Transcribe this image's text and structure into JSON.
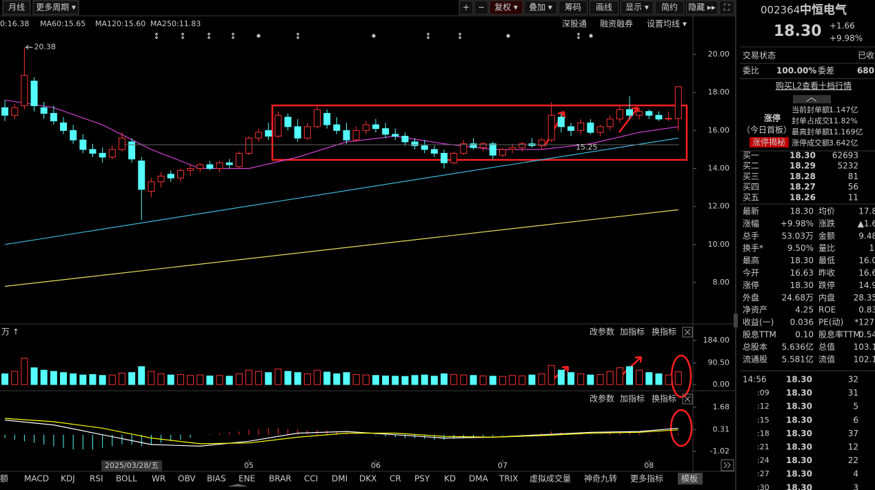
{
  "toolbar": {
    "left": [
      "月线",
      "更多周期 ▾"
    ],
    "right": [
      "+",
      "−",
      "复权 ▾",
      "叠加 ▾",
      "筹码",
      "画线",
      "显示 ▾",
      "简约",
      "隐藏 ▸▸",
      "⛶"
    ]
  },
  "ma_legend": [
    {
      "text": "0:16.38",
      "color": "#ffffff"
    },
    {
      "text": "MA60:15.65",
      "color": "#dddddd"
    },
    {
      "text": "MA120:15.60",
      "color": "#40e0ff"
    },
    {
      "text": "MA250:11.83",
      "color": "#ffff66"
    }
  ],
  "chart_links": [
    "深股通",
    "融资融券",
    "设置均线 ▾"
  ],
  "panel_controls": [
    "改参数",
    "加指标",
    "换指标"
  ],
  "chart_data": [
    {
      "type": "candlestick",
      "open": [
        17.2,
        16.8,
        17.3,
        18.6,
        17.2,
        16.9,
        16.4,
        16.0,
        15.5,
        15.0,
        14.8,
        14.6,
        15.0,
        15.4,
        14.4,
        12.8,
        13.3,
        13.7,
        13.5,
        13.9,
        14.0,
        14.2,
        14.0,
        14.3,
        14.1,
        14.8,
        15.6,
        16.0,
        15.7,
        16.7,
        16.2,
        15.6,
        16.2,
        16.9,
        16.3,
        16.0,
        15.5,
        16.0,
        16.3,
        16.1,
        15.8,
        15.7,
        15.4,
        15.2,
        15.0,
        14.8,
        14.3,
        14.8,
        15.3,
        15.1,
        15.3,
        14.7,
        15.0,
        15.1,
        15.3,
        15.2,
        15.5,
        16.7,
        16.2,
        16.0,
        16.4,
        15.9,
        16.2,
        16.6,
        17.1,
        16.8,
        17.0,
        16.8,
        16.6,
        16.63
      ],
      "high": [
        17.6,
        17.4,
        20.38,
        18.8,
        17.5,
        17.3,
        16.7,
        16.3,
        15.8,
        15.3,
        15.1,
        15.2,
        15.9,
        15.6,
        14.6,
        13.5,
        13.8,
        13.9,
        14.0,
        14.2,
        14.3,
        14.4,
        14.4,
        14.5,
        14.9,
        15.7,
        16.1,
        16.4,
        17.0,
        16.9,
        16.6,
        16.4,
        17.3,
        17.1,
        16.7,
        16.4,
        16.2,
        16.5,
        16.6,
        16.4,
        16.1,
        15.9,
        15.6,
        15.5,
        15.2,
        15.0,
        14.9,
        15.5,
        15.6,
        15.4,
        15.4,
        15.1,
        15.3,
        15.4,
        15.6,
        15.6,
        17.5,
        16.9,
        16.4,
        16.6,
        16.6,
        16.3,
        16.8,
        17.3,
        17.8,
        17.2,
        17.1,
        17.0,
        17.0,
        18.3
      ],
      "low": [
        16.5,
        16.6,
        17.1,
        17.0,
        16.6,
        16.3,
        15.8,
        15.3,
        14.8,
        14.6,
        14.3,
        14.5,
        14.9,
        14.3,
        11.3,
        12.5,
        13.0,
        13.3,
        13.3,
        13.6,
        13.8,
        13.9,
        13.8,
        14.0,
        14.0,
        14.7,
        15.4,
        15.5,
        15.6,
        16.0,
        15.4,
        15.5,
        16.1,
        16.1,
        15.8,
        15.3,
        15.4,
        15.8,
        15.9,
        15.6,
        15.5,
        15.2,
        15.0,
        14.8,
        14.6,
        14.0,
        14.2,
        14.7,
        15.0,
        14.9,
        14.5,
        14.6,
        14.8,
        14.9,
        15.1,
        15.0,
        15.4,
        15.9,
        15.7,
        15.8,
        15.8,
        15.7,
        16.0,
        16.4,
        16.6,
        16.6,
        16.6,
        16.5,
        16.5,
        16.0
      ],
      "close": [
        16.8,
        17.2,
        18.9,
        17.3,
        16.9,
        16.5,
        16.0,
        15.5,
        15.0,
        14.8,
        14.6,
        15.0,
        15.6,
        14.5,
        12.9,
        13.3,
        13.6,
        13.5,
        13.9,
        14.0,
        14.2,
        14.0,
        14.3,
        14.2,
        14.8,
        15.6,
        15.9,
        15.7,
        16.8,
        16.2,
        15.6,
        16.2,
        17.1,
        16.3,
        16.0,
        15.5,
        16.0,
        16.3,
        16.1,
        15.8,
        15.7,
        15.4,
        15.2,
        15.0,
        14.8,
        14.3,
        14.8,
        15.3,
        15.1,
        15.3,
        14.7,
        15.0,
        15.1,
        15.3,
        15.2,
        15.5,
        16.8,
        16.2,
        16.0,
        16.4,
        15.9,
        16.2,
        16.6,
        17.1,
        16.8,
        17.0,
        16.8,
        16.6,
        16.64,
        18.3
      ],
      "up_color": "#ff3232",
      "down_color": "#54fcfc",
      "xlim": [
        -0.5,
        70.5
      ],
      "ylim": [
        8,
        20
      ],
      "yticks": [
        {
          "value": 20,
          "label": "20.00"
        },
        {
          "value": 18,
          "label": "18.00"
        },
        {
          "value": 16,
          "label": "16.00"
        },
        {
          "value": 14,
          "label": "14.00"
        },
        {
          "value": 12,
          "label": "12.00"
        },
        {
          "value": 10,
          "label": "10.00"
        },
        {
          "value": 8,
          "label": "8.00"
        }
      ],
      "xticks": [
        {
          "value": 13,
          "label": "2025/03/28/五"
        },
        {
          "value": 25,
          "label": "05"
        },
        {
          "value": 38,
          "label": "06"
        },
        {
          "value": 51,
          "label": "07"
        },
        {
          "value": 66,
          "label": "08"
        }
      ],
      "lines": [
        {
          "color": "#40b8e0",
          "x": [
            0,
            69
          ],
          "values": [
            10.0,
            15.6
          ]
        },
        {
          "color": "#e8e060",
          "x": [
            0,
            69
          ],
          "values": [
            7.8,
            11.83
          ]
        },
        {
          "color": "#d040d0",
          "x": [
            0,
            5,
            10,
            15,
            20,
            25,
            30,
            35,
            40,
            45,
            50,
            55,
            60,
            65,
            69
          ],
          "values": [
            17.6,
            17.2,
            16.3,
            15.0,
            14.0,
            14.0,
            14.6,
            15.4,
            15.7,
            15.3,
            15.0,
            15.0,
            15.3,
            15.9,
            16.2
          ]
        }
      ],
      "annotations": [
        {
          "value": 20.38,
          "label": "20.38"
        },
        {
          "value": 15.25,
          "label": "15.25"
        }
      ]
    },
    {
      "type": "bar",
      "unit": "万 ↑",
      "values": [
        45,
        55,
        110,
        70,
        60,
        55,
        50,
        45,
        40,
        42,
        38,
        40,
        48,
        50,
        75,
        55,
        45,
        40,
        42,
        38,
        40,
        36,
        38,
        35,
        45,
        60,
        55,
        50,
        65,
        55,
        50,
        45,
        60,
        52,
        45,
        50,
        42,
        40,
        38,
        36,
        35,
        34,
        38,
        40,
        35,
        45,
        42,
        40,
        38,
        36,
        35,
        34,
        38,
        36,
        40,
        45,
        80,
        60,
        50,
        45,
        40,
        42,
        55,
        70,
        75,
        60,
        50,
        45,
        40,
        53
      ],
      "ylim": [
        0,
        184
      ],
      "yticks": [
        {
          "value": 184,
          "label": "184.00"
        },
        {
          "value": 90.5,
          "label": "90.50"
        },
        {
          "value": 0,
          "label": "0.00"
        }
      ]
    },
    {
      "type": "macd",
      "bars": [
        -0.2,
        -0.3,
        -0.4,
        -0.5,
        -0.6,
        -0.7,
        -0.8,
        -0.9,
        -0.9,
        -0.9,
        -0.8,
        -0.7,
        -0.6,
        -0.6,
        -0.7,
        -0.6,
        -0.5,
        -0.4,
        -0.3,
        -0.2,
        0.0,
        0.05,
        0.1,
        0.15,
        0.2,
        0.3,
        0.35,
        0.4,
        0.4,
        0.35,
        0.3,
        0.25,
        0.3,
        0.25,
        0.2,
        0.1,
        0.05,
        0.0,
        -0.05,
        -0.1,
        -0.15,
        -0.2,
        -0.2,
        -0.25,
        -0.3,
        -0.3,
        -0.25,
        -0.2,
        -0.15,
        -0.1,
        -0.1,
        -0.05,
        0.0,
        0.05,
        0.05,
        0.1,
        0.2,
        0.15,
        0.1,
        0.1,
        0.05,
        0.05,
        0.1,
        0.15,
        0.15,
        0.1,
        0.05,
        0.05,
        0.0,
        0.1
      ],
      "series": [
        {
          "color": "#ffffff",
          "x": [
            0,
            5,
            10,
            15,
            20,
            25,
            30,
            35,
            40,
            45,
            50,
            55,
            60,
            65,
            69
          ],
          "values": [
            0.9,
            0.6,
            0.0,
            -0.6,
            -0.7,
            -0.4,
            0.1,
            0.2,
            0.0,
            -0.2,
            -0.15,
            0.0,
            0.15,
            0.2,
            0.4
          ]
        },
        {
          "color": "#ffff00",
          "x": [
            0,
            5,
            10,
            15,
            20,
            25,
            30,
            35,
            40,
            45,
            50,
            55,
            60,
            65,
            69
          ],
          "values": [
            1.0,
            0.8,
            0.4,
            -0.2,
            -0.55,
            -0.5,
            -0.15,
            0.1,
            0.1,
            -0.1,
            -0.15,
            -0.05,
            0.1,
            0.15,
            0.3
          ]
        }
      ],
      "ylim": [
        -1.02,
        1.68
      ],
      "yticks": [
        {
          "value": 1.68,
          "label": "1.68"
        },
        {
          "value": 0.31,
          "label": "0.31"
        },
        {
          "value": -1.02,
          "label": "-1.02"
        }
      ]
    }
  ],
  "tabs": [
    "金额",
    "MACD",
    "KDJ",
    "RSI",
    "BOLL",
    "WR",
    "OBV",
    "BIAS",
    "ENE",
    "BRAR",
    "CCI",
    "DMI",
    "DKX",
    "CR",
    "PSY",
    "KD",
    "DMA",
    "TRIX",
    "虚拟成交量",
    "神奇九转",
    "更多指标",
    "模板"
  ],
  "quote": {
    "code": "002364",
    "name": "中恒电气",
    "price": "18.30",
    "change": "+1.66",
    "pct": "+9.98%"
  },
  "status": [
    "交易状态",
    "已收"
  ],
  "weibi": [
    "委比",
    "100.00%",
    "委差",
    "680"
  ],
  "l2": "购买L2查看十档行情",
  "limit": {
    "tag": "涨停",
    "sub": "（今日首板）",
    "btn": "涨停揭秘",
    "rows": [
      [
        "当前封单额:",
        "1.147亿"
      ],
      [
        "封单占成交:",
        "11.82%"
      ],
      [
        "最高封单额:",
        "11.169亿"
      ],
      [
        "涨停成交额:",
        "3.642亿"
      ]
    ]
  },
  "bids": [
    [
      "买一",
      "18.30",
      "62693"
    ],
    [
      "买二",
      "18.29",
      "5232"
    ],
    [
      "买三",
      "18.28",
      "81"
    ],
    [
      "买四",
      "18.27",
      "56"
    ],
    [
      "买五",
      "18.26",
      "11"
    ]
  ],
  "stats": [
    [
      "最新",
      "18.30",
      "均价",
      "17.8"
    ],
    [
      "涨幅",
      "+9.98%",
      "涨跌",
      "▲1.6"
    ],
    [
      "总手",
      "53.03万",
      "金额",
      "9.48"
    ],
    [
      "换手*",
      "9.50%",
      "量比",
      "1."
    ],
    [
      "最高",
      "18.30",
      "最低",
      "16.0"
    ],
    [
      "今开",
      "16.63",
      "昨收",
      "16.6"
    ],
    [
      "涨停",
      "18.30",
      "跌停",
      "14.9"
    ],
    [
      "外盘",
      "24.68万",
      "内盘",
      "28.35"
    ],
    [
      "净资产",
      "4.25",
      "ROE",
      "0.83"
    ],
    [
      "收益(一)",
      "0.036",
      "PE(动)",
      "*127."
    ],
    [
      "股息TTM",
      "0.10",
      "股息率TTM",
      "0.54"
    ],
    [
      "总股本",
      "5.636亿",
      "总值",
      "103.1"
    ],
    [
      "流通股",
      "5.581亿",
      "流值",
      "102.1"
    ]
  ],
  "trades": [
    [
      "14:56",
      "18.30",
      "32"
    ],
    [
      ":09",
      "18.30",
      "31"
    ],
    [
      ":12",
      "18.30",
      "5"
    ],
    [
      ":15",
      "18.30",
      "6"
    ],
    [
      ":18",
      "18.30",
      "37"
    ],
    [
      ":21",
      "18.30",
      "12"
    ],
    [
      ":24",
      "18.30",
      "22"
    ],
    [
      ":27",
      "18.30",
      "4"
    ],
    [
      ":30",
      "18.30",
      "3"
    ]
  ]
}
